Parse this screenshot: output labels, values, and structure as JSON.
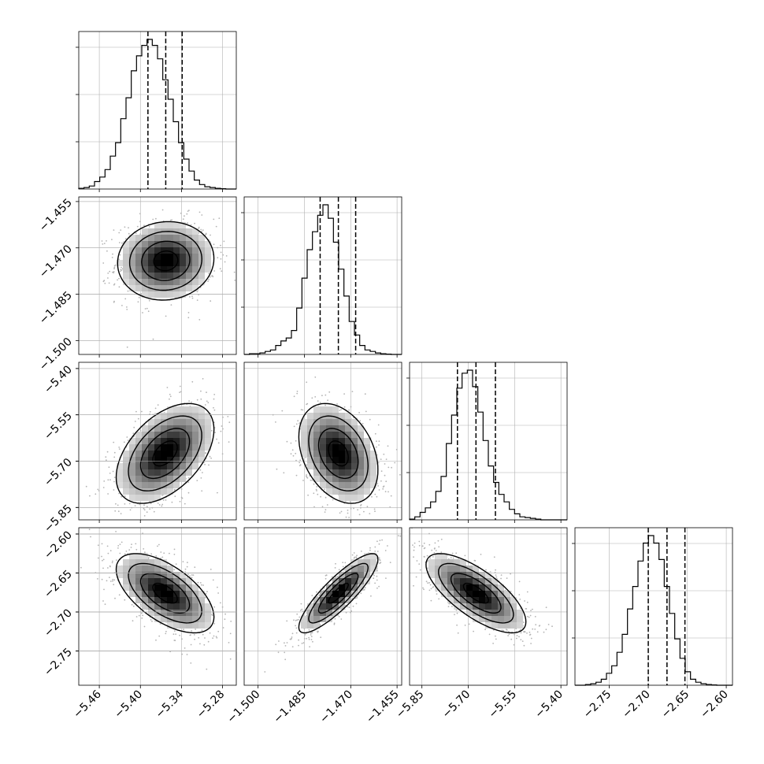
{
  "chart_data": {
    "type": "corner",
    "title": "",
    "parameters": [
      {
        "range": [
          -5.49,
          -5.26
        ],
        "ticks": [
          -5.46,
          -5.4,
          -5.34,
          -5.28
        ],
        "tick_labels": [
          "−5.46",
          "−5.40",
          "−5.34",
          "−5.28"
        ],
        "quantiles": [
          -5.389,
          -5.363,
          -5.339
        ],
        "hist_max": 1.0,
        "hist": [
          0.005,
          0.01,
          0.02,
          0.05,
          0.08,
          0.13,
          0.22,
          0.31,
          0.47,
          0.61,
          0.79,
          0.89,
          0.96,
          1.0,
          0.96,
          0.87,
          0.73,
          0.6,
          0.45,
          0.31,
          0.2,
          0.12,
          0.06,
          0.03,
          0.015,
          0.01,
          0.005,
          0.002,
          0.0,
          0.0
        ]
      },
      {
        "range": [
          -1.5045,
          -1.4535
        ],
        "ticks": [
          -1.5,
          -1.485,
          -1.47,
          -1.455
        ],
        "tick_labels": [
          "−1.500",
          "−1.485",
          "−1.470",
          "−1.455"
        ],
        "quantiles": [
          -1.4799,
          -1.474,
          -1.4684
        ],
        "hist_max": 1.0,
        "hist": [
          0.0,
          0.005,
          0.005,
          0.01,
          0.02,
          0.03,
          0.06,
          0.09,
          0.11,
          0.16,
          0.31,
          0.51,
          0.7,
          0.82,
          0.93,
          1.0,
          0.91,
          0.75,
          0.57,
          0.39,
          0.22,
          0.13,
          0.06,
          0.03,
          0.02,
          0.01,
          0.005,
          0.002,
          0.0,
          0.0
        ]
      },
      {
        "range": [
          -5.89,
          -5.38
        ],
        "ticks": [
          -5.85,
          -5.7,
          -5.55,
          -5.4
        ],
        "tick_labels": [
          "−5.85",
          "−5.70",
          "−5.55",
          "−5.40"
        ],
        "quantiles": [
          -5.735,
          -5.675,
          -5.612
        ],
        "hist_max": 1.0,
        "hist": [
          0.005,
          0.02,
          0.05,
          0.08,
          0.12,
          0.19,
          0.29,
          0.51,
          0.7,
          0.88,
          0.98,
          1.0,
          0.89,
          0.72,
          0.53,
          0.36,
          0.25,
          0.17,
          0.12,
          0.07,
          0.04,
          0.02,
          0.015,
          0.01,
          0.005,
          0.0,
          0.0,
          0.0,
          0.0,
          0.0
        ]
      },
      {
        "range": [
          -2.794,
          -2.592
        ],
        "ticks": [
          -2.75,
          -2.7,
          -2.65,
          -2.6
        ],
        "tick_labels": [
          "−2.75",
          "−2.70",
          "−2.65",
          "−2.60"
        ],
        "quantiles": [
          -2.7,
          -2.676,
          -2.653
        ],
        "hist_max": 1.0,
        "hist": [
          0.0,
          0.0,
          0.005,
          0.01,
          0.02,
          0.04,
          0.08,
          0.13,
          0.22,
          0.34,
          0.51,
          0.66,
          0.83,
          0.95,
          1.0,
          0.95,
          0.84,
          0.66,
          0.48,
          0.31,
          0.18,
          0.09,
          0.04,
          0.02,
          0.01,
          0.005,
          0.002,
          0.0,
          0.0,
          0.0
        ]
      }
    ],
    "histogram_y_ticks": [
      0.3,
      0.6,
      0.9
    ],
    "pairs": [
      {
        "row": 1,
        "col": 0,
        "mean": [
          -5.363,
          -1.4742
        ],
        "sigma": [
          0.0335,
          0.00605
        ],
        "rho": 0.06
      },
      {
        "row": 2,
        "col": 0,
        "mean": [
          -5.364,
          -5.675
        ],
        "sigma": [
          0.034,
          0.077
        ],
        "rho": 0.48
      },
      {
        "row": 2,
        "col": 1,
        "mean": [
          -1.474,
          -5.675
        ],
        "sigma": [
          0.0061,
          0.077
        ],
        "rho": -0.33
      },
      {
        "row": 3,
        "col": 0,
        "mean": [
          -5.364,
          -2.676
        ],
        "sigma": [
          0.034,
          0.0242
        ],
        "rho": -0.6
      },
      {
        "row": 3,
        "col": 1,
        "mean": [
          -1.474,
          -2.676
        ],
        "sigma": [
          0.0061,
          0.0242
        ],
        "rho": 0.86
      },
      {
        "row": 3,
        "col": 2,
        "mean": [
          -5.675,
          -2.676
        ],
        "sigma": [
          0.077,
          0.0242
        ],
        "rho": -0.72
      }
    ],
    "contour_levels_sigma": [
      0.5,
      1.0,
      1.5,
      2.0
    ],
    "grid": true,
    "legend": "none",
    "colors": {
      "line": "#000000",
      "points": "#b4b4b4",
      "grid": "#b0b0b0",
      "background": "#ffffff"
    }
  }
}
